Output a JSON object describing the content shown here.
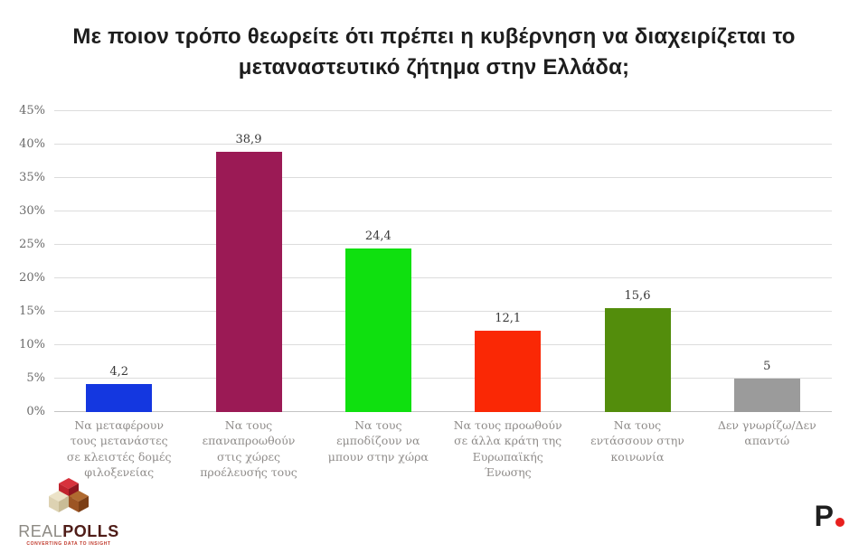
{
  "title": "Με ποιον τρόπο θεωρείτε ότι πρέπει η κυβέρνηση να διαχειρίζεται το μεταναστευτικό ζήτημα στην Ελλάδα;",
  "chart_data": {
    "type": "bar",
    "title": "Με ποιον τρόπο θεωρείτε ότι πρέπει η κυβέρνηση να διαχειρίζεται το μεταναστευτικό ζήτημα στην Ελλάδα;",
    "categories": [
      "Να μεταφέρουν τους μετανάστες σε κλειστές δομές φιλοξενείας",
      "Να τους επαναπροωθούν στις χώρες προέλευσής τους",
      "Να τους εμποδίζουν να μπουν στην χώρα",
      "Να τους προωθούν σε άλλα κράτη της Ευρωπαϊκής Ένωσης",
      "Να τους εντάσσουν στην κοινωνία",
      "Δεν γνωρίζω/Δεν απαντώ"
    ],
    "values": [
      4.2,
      38.9,
      24.4,
      12.1,
      15.6,
      5
    ],
    "value_labels": [
      "4,2",
      "38,9",
      "24,4",
      "12,1",
      "15,6",
      "5"
    ],
    "bar_colors": [
      "#1437e0",
      "#9b1a55",
      "#0fe00f",
      "#fa2805",
      "#538d0c",
      "#9b9b9b"
    ],
    "xlabel": "",
    "ylabel": "",
    "ylim": [
      0,
      45
    ],
    "ytick_step": 5,
    "ytick_suffix": "%",
    "grid": true,
    "legend_position": "none"
  },
  "footer": {
    "brand_left": {
      "name_light": "REAL",
      "name_bold": "POLLS",
      "tagline": "CONVERTING DATA TO INSIGHT"
    },
    "brand_right": {
      "letter": "P"
    }
  },
  "colors": {
    "background": "#ffffff",
    "gridline": "#dcdcdc",
    "baseline": "#c4c4c4",
    "title_text": "#1d1d1d",
    "ytick_text": "#6b6b6b",
    "xtick_text": "#8f8c8a",
    "value_text": "#383838",
    "publisher_dot": "#e8201e"
  }
}
